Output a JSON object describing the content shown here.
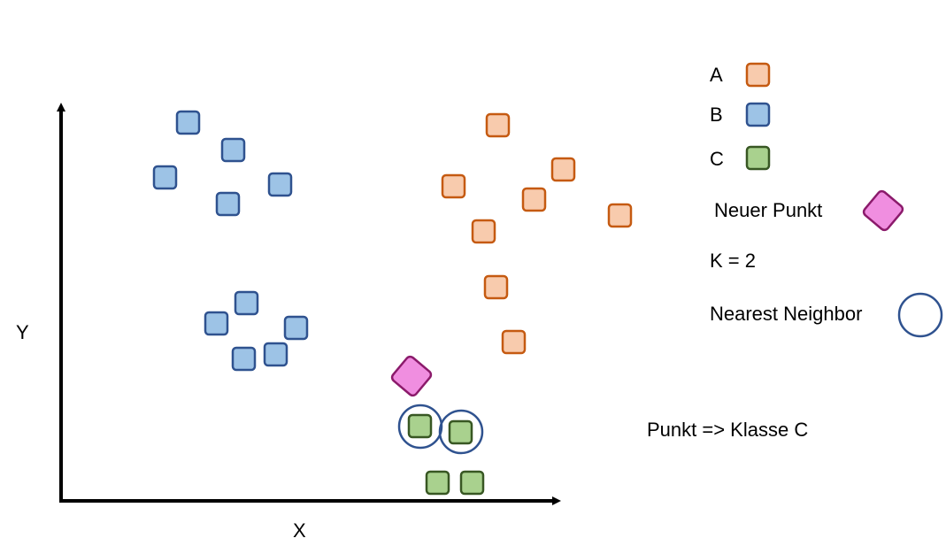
{
  "axes": {
    "x_label": "X",
    "y_label": "Y"
  },
  "legend": {
    "items": [
      {
        "label": "A",
        "color_fill": "#f8cbad",
        "color_stroke": "#c55a11"
      },
      {
        "label": "B",
        "color_fill": "#9dc3e6",
        "color_stroke": "#2f528f"
      },
      {
        "label": "C",
        "color_fill": "#a9d18e",
        "color_stroke": "#385723"
      }
    ],
    "new_point": {
      "label": "Neuer Punkt",
      "color_fill": "#f08ee0",
      "color_stroke": "#8b1a6b"
    },
    "k_label": "K = 2",
    "neighbor": {
      "label": "Nearest Neighbor",
      "color_stroke": "#2f528f"
    }
  },
  "result_text": "Punkt => Klasse C"
}
